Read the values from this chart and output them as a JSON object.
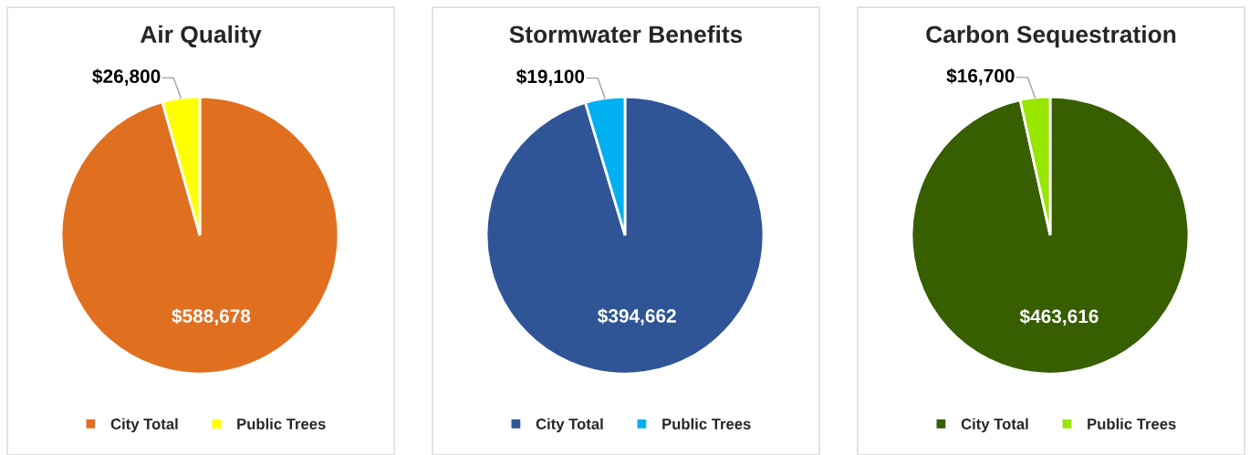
{
  "chart_data": [
    {
      "type": "pie",
      "title": "Air Quality",
      "categories": [
        "City Total",
        "Public Trees"
      ],
      "values": [
        588678,
        26800
      ],
      "colors": [
        "#e07020",
        "#ffff00"
      ],
      "value_labels": [
        "$588,678",
        "$26,800"
      ],
      "legend": "bottom"
    },
    {
      "type": "pie",
      "title": "Stormwater Benefits",
      "categories": [
        "City Total",
        "Public Trees"
      ],
      "values": [
        394662,
        19100
      ],
      "colors": [
        "#2f5597",
        "#00b0f0"
      ],
      "value_labels": [
        "$394,662",
        "$19,100"
      ],
      "legend": "bottom"
    },
    {
      "type": "pie",
      "title": "Carbon Sequestration",
      "categories": [
        "City Total",
        "Public Trees"
      ],
      "values": [
        463616,
        16700
      ],
      "colors": [
        "#375f00",
        "#99e600"
      ],
      "value_labels": [
        "$463,616",
        "$16,700"
      ],
      "legend": "bottom"
    }
  ]
}
